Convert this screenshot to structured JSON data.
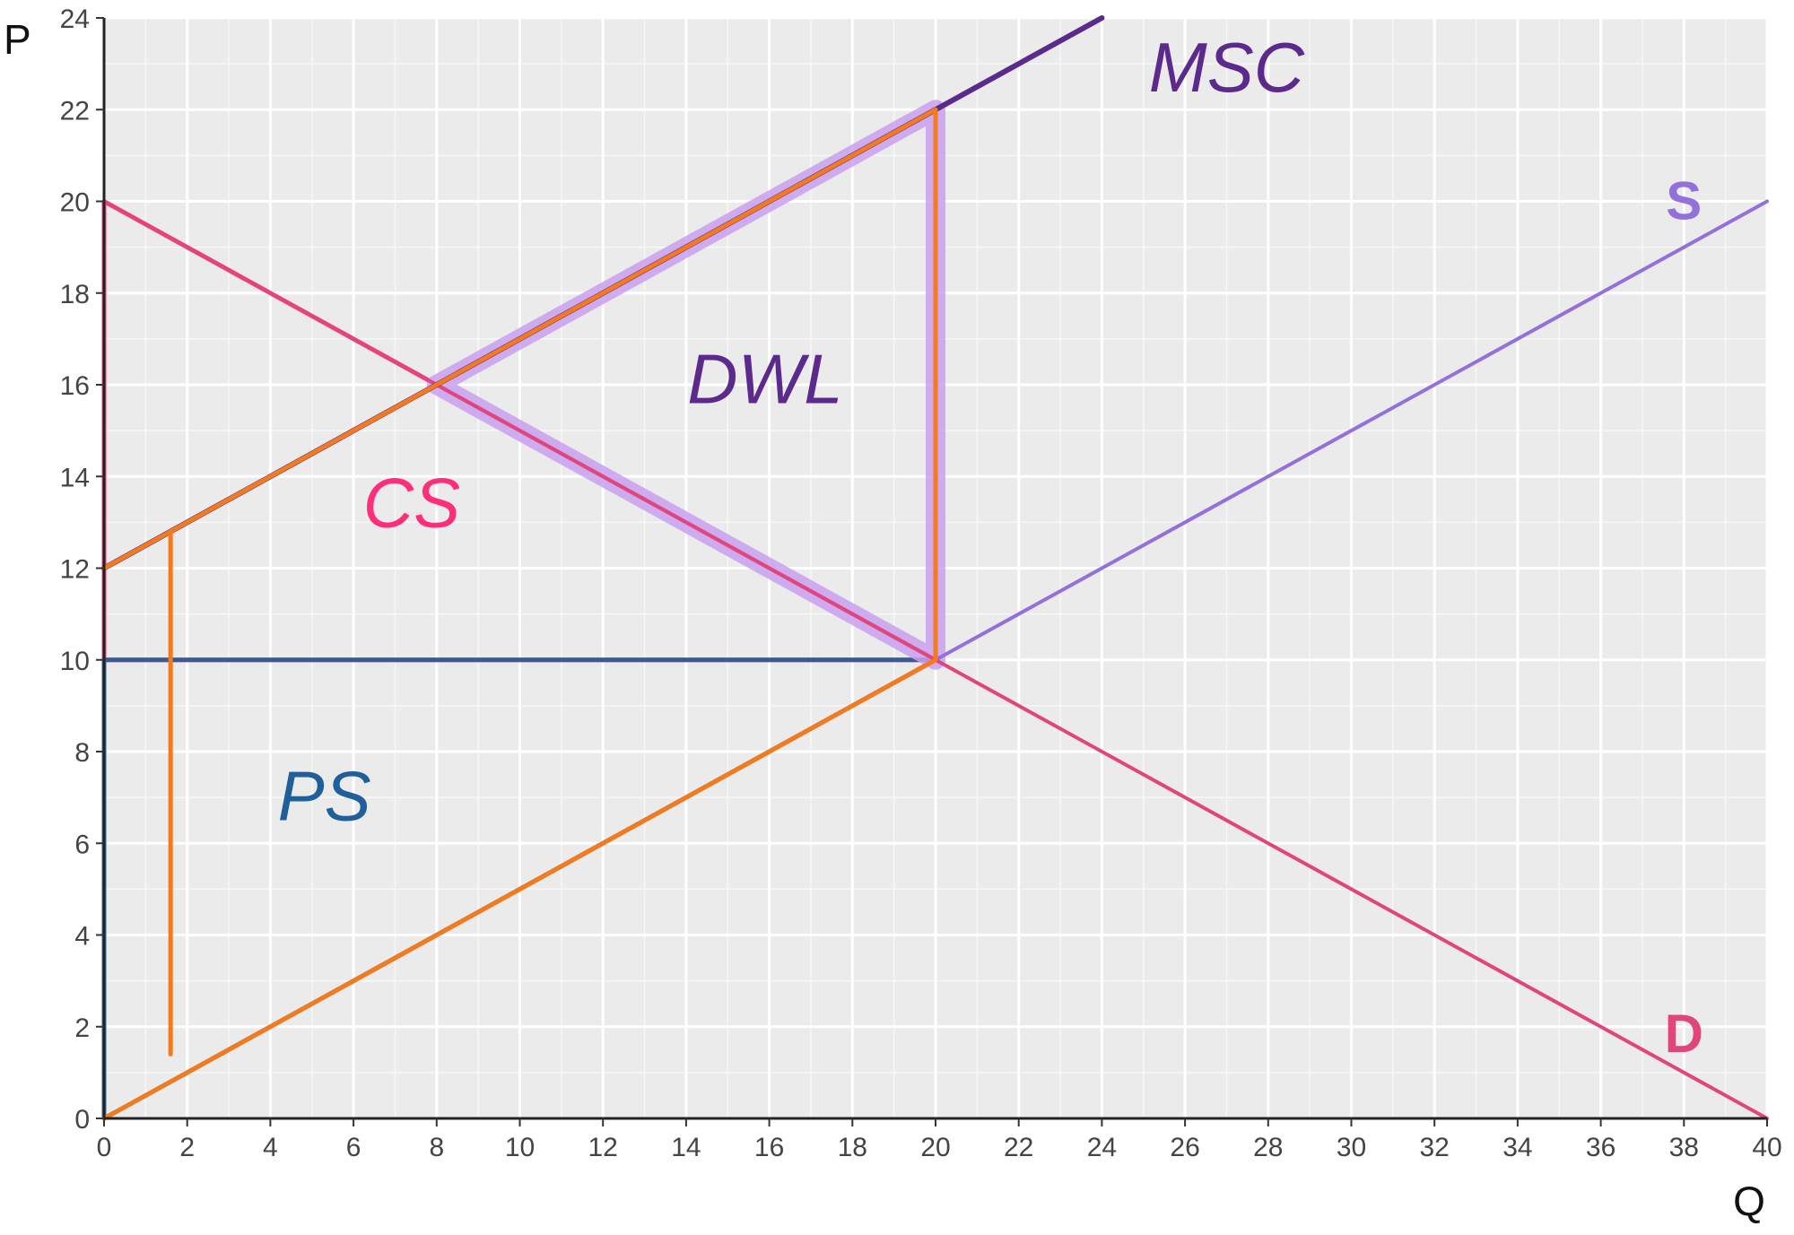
{
  "chart_data": {
    "type": "line",
    "xlabel": "Q",
    "ylabel": "P",
    "xlim": [
      0,
      40
    ],
    "ylim": [
      0,
      24
    ],
    "xticks": [
      0,
      2,
      4,
      6,
      8,
      10,
      12,
      14,
      16,
      18,
      20,
      22,
      24,
      26,
      28,
      30,
      32,
      34,
      36,
      38,
      40
    ],
    "yticks": [
      0,
      2,
      4,
      6,
      8,
      10,
      12,
      14,
      16,
      18,
      20,
      22,
      24
    ],
    "grid": true,
    "series": [
      {
        "name": "S",
        "color": "#9370DB",
        "x": [
          0,
          40
        ],
        "y": [
          0,
          20
        ]
      },
      {
        "name": "D",
        "color": "#E0457B",
        "x": [
          0,
          40
        ],
        "y": [
          20,
          0
        ]
      },
      {
        "name": "MSC",
        "color": "#5B2A8C",
        "x": [
          0,
          24
        ],
        "y": [
          12,
          24
        ]
      }
    ],
    "annotations": [
      {
        "text": "MSC",
        "color": "#5B2A8C"
      },
      {
        "text": "DWL",
        "color": "#5B2A8C"
      },
      {
        "text": "CS",
        "color": "#FF2D7A"
      },
      {
        "text": "PS",
        "color": "#1F5F9A"
      }
    ],
    "shaded_regions": [
      {
        "name": "CS",
        "color": "#FF2D7A",
        "x": [
          0,
          0,
          20
        ],
        "y": [
          10,
          20,
          10
        ]
      },
      {
        "name": "PS",
        "color": "#1F5F9A",
        "x": [
          0,
          0,
          20
        ],
        "y": [
          0,
          10,
          10
        ]
      },
      {
        "name": "DWL",
        "color": "#C9A0F0",
        "x": [
          8,
          20,
          20
        ],
        "y": [
          16,
          22,
          10
        ]
      }
    ],
    "outlines": [
      {
        "color": "#F47A1E",
        "x": [
          0,
          20,
          20,
          0
        ],
        "y": [
          12,
          22,
          10,
          0
        ]
      },
      {
        "color": "#F47A1E",
        "x": [
          1.6,
          1.6
        ],
        "y": [
          12.8,
          1.4
        ]
      }
    ]
  }
}
